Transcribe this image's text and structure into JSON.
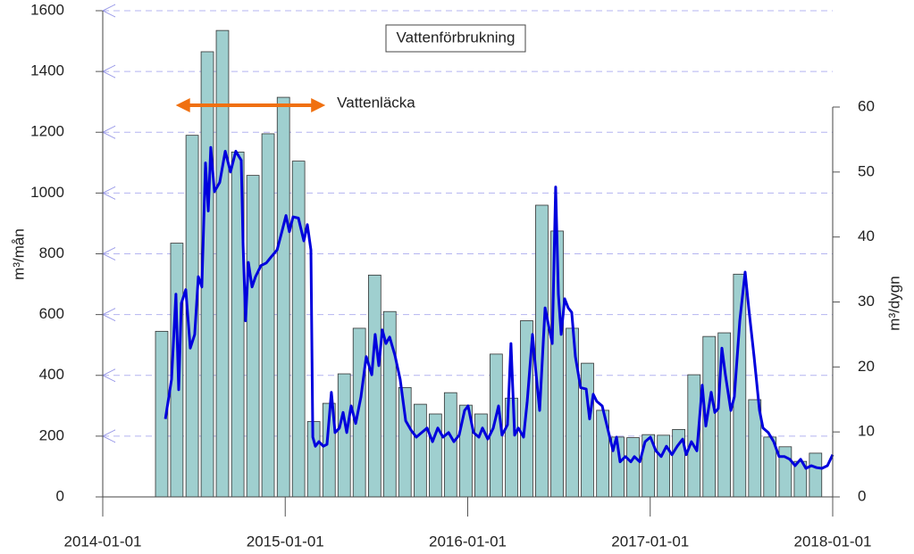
{
  "chart_data": {
    "type": "bar-line",
    "title": "Vattenförbrukning",
    "ylabel": "m³/mån",
    "y2label": "m³/dygn",
    "xlim": [
      2014,
      2018
    ],
    "xticks": [
      {
        "value": 2014,
        "label": "2014-01-01"
      },
      {
        "value": 2015,
        "label": "2015-01-01"
      },
      {
        "value": 2016,
        "label": "2016-01-01"
      },
      {
        "value": 2017,
        "label": "2017-01-01"
      },
      {
        "value": 2018,
        "label": "2018-01-01"
      }
    ],
    "ylim": [
      0,
      1600
    ],
    "yticks": [
      0,
      200,
      400,
      600,
      800,
      1000,
      1200,
      1400,
      1600
    ],
    "y2lim": [
      0,
      60
    ],
    "y2ticks": [
      0,
      10,
      20,
      30,
      40,
      50,
      60
    ],
    "grid": true,
    "annotations": [
      {
        "text": "Vattenläcka",
        "x_range": [
          2014.4,
          2015.22
        ],
        "color": "#f07010"
      }
    ],
    "series": [
      {
        "kind": "bar",
        "color": "#9fcfcf",
        "x": [
          2014.323,
          2014.406,
          2014.49,
          2014.573,
          2014.656,
          2014.74,
          2014.823,
          2014.906,
          2014.99,
          2015.073,
          2015.156,
          2015.24,
          2015.323,
          2015.406,
          2015.49,
          2015.573,
          2015.656,
          2015.74,
          2015.823,
          2015.906,
          2015.99,
          2016.073,
          2016.156,
          2016.24,
          2016.323,
          2016.406,
          2016.49,
          2016.573,
          2016.656,
          2016.74,
          2016.823,
          2016.906,
          2016.99,
          2017.073,
          2017.156,
          2017.24,
          2017.323,
          2017.406,
          2017.49,
          2017.573,
          2017.656,
          2017.74,
          2017.823,
          2017.906
        ],
        "values": [
          545,
          835,
          1190,
          1465,
          1535,
          1135,
          1058,
          1195,
          1315,
          1105,
          248,
          308,
          405,
          555,
          730,
          610,
          360,
          305,
          273,
          343,
          302,
          273,
          470,
          325,
          580,
          960,
          875,
          555,
          440,
          285,
          197,
          195,
          205,
          203,
          222,
          402,
          528,
          540,
          733,
          320,
          197,
          165,
          117,
          144
        ]
      },
      {
        "kind": "line",
        "axis": "y2",
        "color": "#0000dd",
        "x": [
          2014.343,
          2014.377,
          2014.401,
          2014.416,
          2014.431,
          2014.455,
          2014.48,
          2014.504,
          2014.524,
          2014.543,
          2014.563,
          2014.578,
          2014.592,
          2014.612,
          2014.641,
          2014.671,
          2014.7,
          2014.729,
          2014.759,
          2014.769,
          2014.783,
          2014.798,
          2014.818,
          2014.837,
          2014.867,
          2014.896,
          2014.925,
          2014.955,
          2014.984,
          2015.004,
          2015.023,
          2015.043,
          2015.072,
          2015.102,
          2015.121,
          2015.141,
          2015.151,
          2015.165,
          2015.185,
          2015.209,
          2015.229,
          2015.253,
          2015.273,
          2015.297,
          2015.317,
          2015.337,
          2015.361,
          2015.386,
          2015.415,
          2015.444,
          2015.474,
          2015.493,
          2015.513,
          2015.532,
          2015.552,
          2015.572,
          2015.601,
          2015.63,
          2015.66,
          2015.689,
          2015.718,
          2015.748,
          2015.777,
          2015.807,
          2015.836,
          2015.865,
          2015.895,
          2015.924,
          2015.953,
          2015.983,
          2016.002,
          2016.032,
          2016.061,
          2016.081,
          2016.11,
          2016.14,
          2016.169,
          2016.188,
          2016.218,
          2016.237,
          2016.257,
          2016.277,
          2016.306,
          2016.326,
          2016.355,
          2016.375,
          2016.394,
          2016.424,
          2016.443,
          2016.463,
          2016.482,
          2016.497,
          2016.512,
          2016.531,
          2016.551,
          2016.57,
          2016.59,
          2016.619,
          2016.649,
          2016.668,
          2016.688,
          2016.707,
          2016.737,
          2016.766,
          2016.796,
          2016.815,
          2016.835,
          2016.864,
          2016.894,
          2016.913,
          2016.943,
          2016.972,
          2017.001,
          2017.031,
          2017.06,
          2017.089,
          2017.119,
          2017.148,
          2017.178,
          2017.197,
          2017.226,
          2017.256,
          2017.285,
          2017.305,
          2017.334,
          2017.354,
          2017.373,
          2017.393,
          2017.412,
          2017.442,
          2017.461,
          2017.491,
          2017.52,
          2017.54,
          2017.569,
          2017.599,
          2017.618,
          2017.647,
          2017.677,
          2017.706,
          2017.736,
          2017.765,
          2017.794,
          2017.824,
          2017.853,
          2017.883,
          2017.912,
          2017.941,
          2017.971,
          2018.0
        ],
        "values": [
          12.0,
          18.1,
          31.2,
          16.5,
          29.8,
          31.9,
          22.9,
          25.0,
          33.9,
          32.3,
          51.4,
          44.0,
          53.8,
          47.0,
          48.4,
          53.2,
          50.0,
          53.2,
          51.8,
          38.7,
          27.1,
          36.1,
          32.3,
          33.9,
          35.6,
          36.0,
          37.0,
          38.0,
          41.1,
          43.3,
          40.8,
          43.1,
          42.9,
          39.4,
          41.9,
          38.0,
          9.2,
          7.8,
          8.5,
          7.8,
          8.1,
          16.1,
          9.9,
          10.6,
          13.0,
          9.9,
          14.0,
          11.3,
          15.4,
          21.6,
          18.8,
          25.0,
          20.2,
          25.7,
          23.6,
          24.6,
          21.8,
          18.1,
          11.7,
          10.3,
          9.2,
          9.9,
          10.6,
          8.5,
          10.6,
          9.2,
          9.9,
          8.5,
          9.5,
          13.3,
          14.0,
          9.9,
          9.2,
          10.6,
          8.9,
          10.6,
          14.0,
          9.5,
          11.1,
          23.6,
          9.5,
          10.6,
          9.2,
          14.7,
          25.0,
          18.8,
          13.3,
          29.1,
          26.4,
          23.6,
          47.7,
          31.2,
          25.0,
          30.5,
          29.1,
          28.4,
          21.6,
          16.8,
          16.6,
          12.0,
          15.8,
          14.7,
          14.0,
          10.6,
          7.1,
          9.2,
          5.4,
          6.2,
          5.4,
          6.2,
          5.4,
          8.5,
          9.2,
          7.1,
          6.2,
          7.8,
          6.5,
          7.8,
          8.9,
          6.5,
          8.5,
          7.1,
          17.2,
          10.9,
          16.1,
          13.0,
          13.6,
          22.9,
          18.8,
          13.3,
          15.4,
          27.1,
          34.6,
          29.1,
          21.6,
          13.3,
          10.6,
          9.9,
          8.5,
          6.2,
          6.2,
          5.8,
          4.8,
          5.8,
          4.4,
          4.8,
          4.5,
          4.4,
          4.8,
          6.5
        ]
      }
    ]
  }
}
